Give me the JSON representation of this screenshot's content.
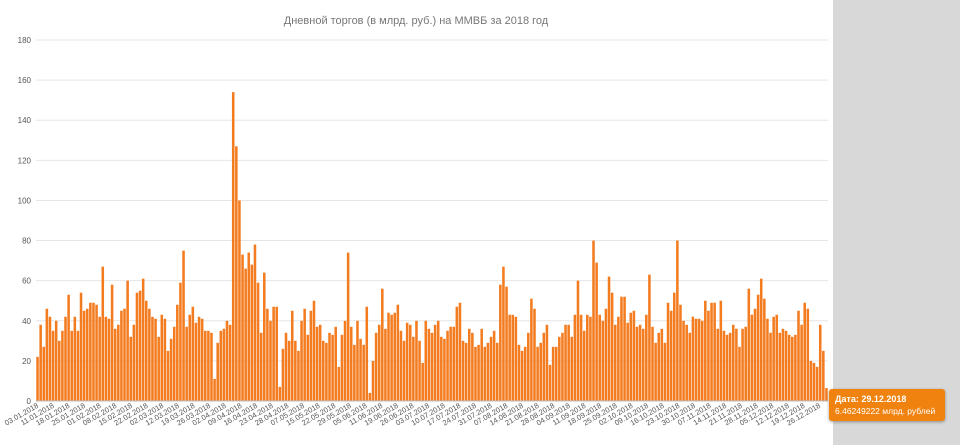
{
  "chart_data": {
    "type": "bar",
    "title": "Дневной  торгов (в млрд. руб.) на ММВБ за 2018 год",
    "xlabel": "",
    "ylabel": "",
    "ylim": [
      0,
      180
    ],
    "yticks": [
      0,
      20,
      40,
      60,
      80,
      100,
      120,
      140,
      160,
      180
    ],
    "grid": true,
    "legend": "none",
    "bar_color": "#f47c20",
    "tick_labels": [
      "03.01.2018",
      "11.01.2018",
      "18.01.2018",
      "25.01.2018",
      "01.02.2018",
      "08.02.2018",
      "15.02.2018",
      "22.02.2018",
      "02.03.2018",
      "12.03.2018",
      "19.03.2018",
      "26.03.2018",
      "02.04.2018",
      "09.04.2018",
      "16.04.2018",
      "23.04.2018",
      "28.04.2018",
      "07.05.2018",
      "15.05.2018",
      "22.05.2018",
      "29.05.2018",
      "05.06.2018",
      "11.06.2018",
      "19.06.2018",
      "26.06.2018",
      "03.07.2018",
      "10.07.2018",
      "17.07.2018",
      "24.07.2018",
      "31.07.2018",
      "07.08.2018",
      "14.08.2018",
      "21.08.2018",
      "28.08.2018",
      "04.09.2018",
      "11.09.2018",
      "18.09.2018",
      "25.09.2018",
      "02.10.2018",
      "09.10.2018",
      "16.10.2018",
      "23.10.2018",
      "30.10.2018",
      "07.11.2018",
      "14.11.2018",
      "21.11.2018",
      "28.11.2018",
      "05.12.2018",
      "12.12.2018",
      "19.12.2018",
      "26.12.2018"
    ],
    "values": [
      22,
      38,
      27,
      46,
      42,
      35,
      40,
      30,
      35,
      42,
      53,
      35,
      42,
      35,
      54,
      45,
      46,
      49,
      49,
      48,
      42,
      67,
      42,
      41,
      58,
      36,
      38,
      45,
      46,
      60,
      32,
      38,
      54,
      55,
      61,
      50,
      46,
      42,
      41,
      32,
      43,
      41,
      25,
      31,
      37,
      48,
      59,
      75,
      37,
      43,
      47,
      39,
      42,
      41,
      35,
      35,
      34,
      11,
      29,
      35,
      36,
      40,
      38,
      154,
      127,
      100,
      73,
      66,
      74,
      68,
      78,
      59,
      34,
      64,
      46,
      40,
      47,
      47,
      7,
      26,
      34,
      30,
      45,
      30,
      25,
      40,
      46,
      33,
      45,
      50,
      37,
      38,
      30,
      29,
      34,
      33,
      37,
      17,
      33,
      40,
      74,
      37,
      28,
      40,
      31,
      28,
      47,
      4,
      20,
      34,
      38,
      56,
      36,
      44,
      43,
      44,
      48,
      35,
      30,
      39,
      38,
      32,
      40,
      30,
      19,
      40,
      36,
      34,
      38,
      40,
      32,
      31,
      35,
      37,
      37,
      47,
      49,
      30,
      29,
      36,
      34,
      27,
      28,
      36,
      27,
      29,
      32,
      35,
      29,
      58,
      67,
      57,
      43,
      43,
      42,
      28,
      25,
      27,
      34,
      51,
      46,
      27,
      29,
      34,
      38,
      18,
      27,
      27,
      32,
      34,
      38,
      38,
      32,
      43,
      60,
      43,
      35,
      43,
      42,
      80,
      69,
      43,
      40,
      46,
      62,
      54,
      38,
      42,
      52,
      52,
      39,
      44,
      45,
      37,
      38,
      36,
      43,
      63,
      37,
      29,
      34,
      36,
      29,
      49,
      45,
      54,
      80,
      48,
      40,
      38,
      34,
      42,
      41,
      41,
      40,
      50,
      45,
      49,
      49,
      36,
      50,
      35,
      33,
      34,
      38,
      36,
      27,
      36,
      37,
      56,
      43,
      46,
      53,
      61,
      51,
      41,
      34,
      42,
      43,
      34,
      36,
      35,
      33,
      32,
      33,
      45,
      38,
      49,
      46,
      20,
      19,
      17,
      38,
      25,
      6.46
    ]
  },
  "tooltip": {
    "date_label": "Дата: 29.12.2018",
    "value_text": "6.46249222 млрд. рублей"
  }
}
